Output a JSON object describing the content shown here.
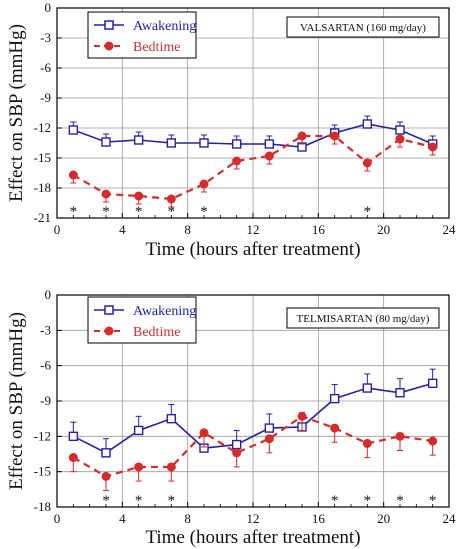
{
  "chart_data": [
    {
      "type": "line",
      "annotation": "VALSARTAN (160 mg/day)",
      "ylabel": "Effect on SBP (mmHg)",
      "xlabel": "Time (hours after treatment)",
      "xlim": [
        0,
        24
      ],
      "ylim": [
        -21,
        0
      ],
      "xticks": [
        0,
        4,
        8,
        12,
        16,
        20,
        24
      ],
      "yticks": [
        0,
        -3,
        -6,
        -9,
        -12,
        -15,
        -18,
        -21
      ],
      "grid": true,
      "legend_position": "top-left",
      "x": [
        1,
        3,
        5,
        7,
        9,
        11,
        13,
        15,
        17,
        19,
        21,
        23
      ],
      "series": [
        {
          "name": "Awakening",
          "color": "#2323a3",
          "marker": "open-square",
          "line": "solid",
          "values": [
            -12.2,
            -13.4,
            -13.2,
            -13.5,
            -13.5,
            -13.6,
            -13.6,
            -13.9,
            -12.5,
            -11.6,
            -12.2,
            -13.6
          ],
          "errors": [
            0.8,
            0.8,
            0.8,
            0.8,
            0.8,
            0.8,
            0.8,
            0.8,
            0.8,
            0.8,
            0.8,
            0.8
          ]
        },
        {
          "name": "Bedtime",
          "color": "#d42b2b",
          "marker": "filled-circle",
          "line": "dashed",
          "values": [
            -16.7,
            -18.6,
            -18.8,
            -19.1,
            -17.6,
            -15.3,
            -14.8,
            -12.8,
            -12.8,
            -15.5,
            -13.1,
            -13.9
          ],
          "errors": [
            0.8,
            0.8,
            0.8,
            0.8,
            0.8,
            0.8,
            0.8,
            0.8,
            0.8,
            0.8,
            0.8,
            0.8
          ]
        }
      ],
      "significance_marks": [
        {
          "x": 1,
          "label": "*"
        },
        {
          "x": 3,
          "label": "*"
        },
        {
          "x": 5,
          "label": "*"
        },
        {
          "x": 7,
          "label": "*"
        },
        {
          "x": 9,
          "label": "*"
        },
        {
          "x": 19,
          "label": "*"
        }
      ]
    },
    {
      "type": "line",
      "annotation": "TELMISARTAN (80 mg/day)",
      "ylabel": "Effect on SBP (mmHg)",
      "xlabel": "Time (hours after treatment)",
      "xlim": [
        0,
        24
      ],
      "ylim": [
        -18,
        0
      ],
      "xticks": [
        0,
        4,
        8,
        12,
        16,
        20,
        24
      ],
      "yticks": [
        0,
        -3,
        -6,
        -9,
        -12,
        -15,
        -18
      ],
      "grid": true,
      "legend_position": "top-left",
      "x": [
        1,
        3,
        5,
        7,
        9,
        11,
        13,
        15,
        17,
        19,
        21,
        23
      ],
      "series": [
        {
          "name": "Awakening",
          "color": "#2323a3",
          "marker": "open-square",
          "line": "solid",
          "values": [
            -12.0,
            -13.4,
            -11.5,
            -10.5,
            -13.0,
            -12.7,
            -11.3,
            -11.2,
            -8.8,
            -7.9,
            -8.3,
            -7.5
          ],
          "errors": [
            1.2,
            1.2,
            1.2,
            1.2,
            1.2,
            1.2,
            1.2,
            1.2,
            1.2,
            1.2,
            1.2,
            1.2
          ]
        },
        {
          "name": "Bedtime",
          "color": "#d42b2b",
          "marker": "filled-circle",
          "line": "dashed",
          "values": [
            -13.8,
            -15.4,
            -14.6,
            -14.6,
            -11.7,
            -13.4,
            -12.2,
            -10.3,
            -11.3,
            -12.6,
            -12.0,
            -12.4
          ],
          "errors": [
            1.2,
            1.2,
            1.2,
            1.2,
            1.2,
            1.2,
            1.2,
            1.2,
            1.2,
            1.2,
            1.2,
            1.2
          ]
        }
      ],
      "significance_marks": [
        {
          "x": 3,
          "label": "*"
        },
        {
          "x": 5,
          "label": "*"
        },
        {
          "x": 7,
          "label": "*"
        },
        {
          "x": 17,
          "label": "*"
        },
        {
          "x": 19,
          "label": "*"
        },
        {
          "x": 21,
          "label": "*"
        },
        {
          "x": 23,
          "label": "*"
        }
      ]
    }
  ]
}
